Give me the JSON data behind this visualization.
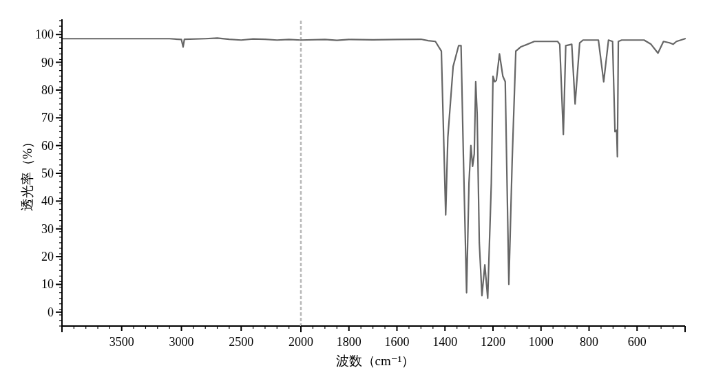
{
  "chart_data": [
    {
      "type": "line",
      "ylabel": "透光率（%）",
      "xlim": [
        4000,
        2000
      ],
      "ylim": [
        -5,
        105
      ],
      "xticks": [
        3500,
        3000,
        2500
      ],
      "yticks": [
        0,
        10,
        20,
        30,
        40,
        50,
        60,
        70,
        80,
        90,
        100
      ],
      "x": [
        4000,
        3100,
        3000,
        2986,
        2975,
        2800,
        2700,
        2600,
        2500,
        2400,
        2300,
        2200,
        2100,
        2000
      ],
      "series": [
        {
          "color": "#666666",
          "values": [
            98.5,
            98.5,
            98.2,
            95.5,
            98.3,
            98.5,
            98.7,
            98.3,
            98.0,
            98.4,
            98.3,
            98.0,
            98.2,
            98.0
          ]
        }
      ]
    },
    {
      "type": "line",
      "xlabel": "波数（cm⁻¹）",
      "xlim": [
        2000,
        400
      ],
      "ylim": [
        -5,
        105
      ],
      "xticks": [
        2000,
        1800,
        1600,
        1400,
        1200,
        1000,
        800,
        600
      ],
      "tick_labels": "x",
      "ref_lines": [
        {
          "axis": "x",
          "value": 2000,
          "color": "#b8b8b8",
          "line_style": "dashed"
        }
      ],
      "x": [
        2000,
        1900,
        1850,
        1800,
        1700,
        1600,
        1500,
        1470,
        1440,
        1415,
        1397,
        1388,
        1366,
        1343,
        1333,
        1323,
        1310,
        1300,
        1292,
        1285,
        1278,
        1272,
        1266,
        1257,
        1246,
        1234,
        1222,
        1207,
        1200,
        1193,
        1186,
        1173,
        1159,
        1149,
        1134,
        1120,
        1105,
        1085,
        1028,
        931,
        922,
        907,
        897,
        872,
        858,
        839,
        825,
        761,
        739,
        719,
        702,
        692,
        685,
        682,
        678,
        664,
        571,
        542,
        513,
        490,
        465,
        450,
        436,
        400
      ],
      "series": [
        {
          "color": "#666666",
          "values": [
            98.0,
            98.2,
            97.9,
            98.2,
            98.1,
            98.2,
            98.3,
            97.8,
            97.5,
            94,
            35,
            63,
            88.5,
            96,
            96,
            55,
            7,
            46.5,
            60,
            52.5,
            57,
            83,
            71.5,
            25,
            6,
            17,
            5,
            46.5,
            85,
            83,
            83.5,
            93,
            85,
            83,
            10,
            55,
            94,
            95.5,
            97.5,
            97.5,
            96.5,
            64,
            96,
            96.5,
            75,
            97,
            98,
            98,
            83,
            98,
            97.5,
            65,
            65.5,
            56,
            97.5,
            98,
            98,
            96.5,
            93.3,
            97.5,
            97,
            96.5,
            97.5,
            98.5
          ]
        }
      ]
    }
  ]
}
